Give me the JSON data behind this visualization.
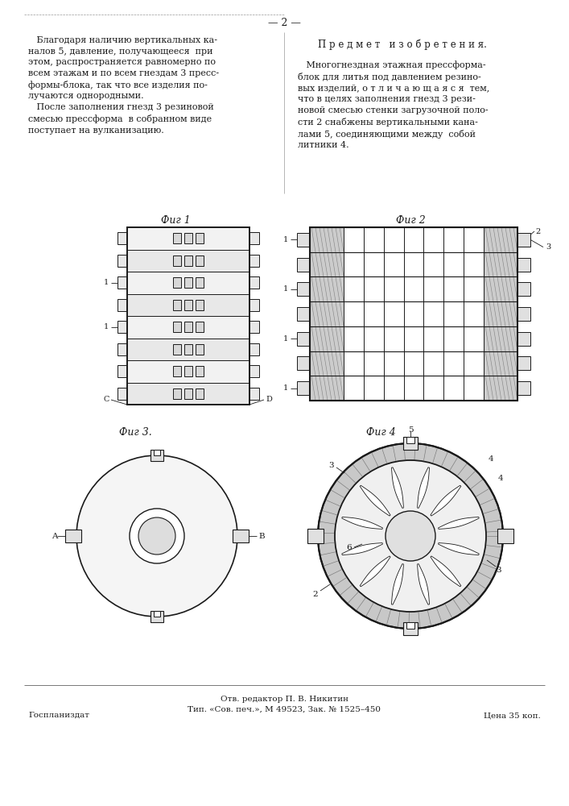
{
  "bg_color": "#ffffff",
  "page_width": 7.07,
  "page_height": 10.0,
  "text_color": "#1a1a1a",
  "line_color": "#1a1a1a",
  "top_text_left": "   Благодаря наличию вертикальных ка-\nналов 5, давление, получающееся  при\nэтом, распространяется равномерно по\nвсем этажам и по всем гнездам 3 пресс-\nформы-блока, так что все изделия по-\nлучаются однородными.\n   После заполнения гнезд 3 резиновой\nсмесью прессформа  в собранном виде\nпоступает на вулканизацию.",
  "top_title_right": "П р е д м е т   и з о б р е т е н и я.",
  "top_text_right": "   Многогнездная этажная прессформа-\nблок для литья под давлением резино-\nвых изделий, о т л и ч а ю щ а я с я  тем,\nчто в целях заполнения гнезд 3 рези-\nновой смесью стенки загрузочной поло-\nсти 2 снабжены вертикальными кана-\nлами 5, соединяющими между  собой\nлитники 4.",
  "fig1_label": "Фиг 1",
  "fig2_label": "Фиг 2",
  "fig3_label": "Фиг 3.",
  "fig4_label": "Фиг 4",
  "footer_center": "Отв. редактор П. В. Никитин\nТип. «Сов. печ.», М 49523, Зак. № 1525–450",
  "footer_left": "Госпланиздат",
  "footer_right": "Цена 35 коп.",
  "page_number": "— 2 —"
}
